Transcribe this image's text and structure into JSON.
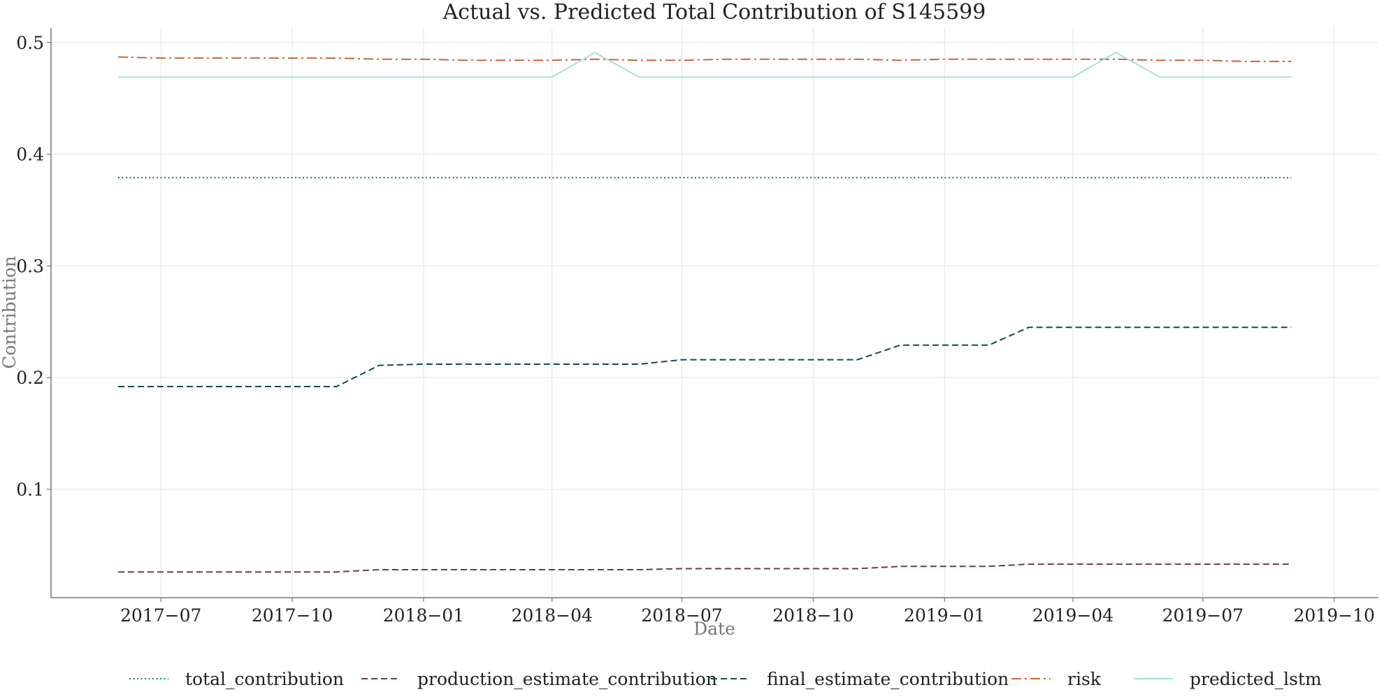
{
  "chart_data": {
    "type": "line",
    "title": "Actual vs. Predicted Total Contribution of S145599",
    "xlabel": "Date",
    "ylabel": "Contribution",
    "x_ticks": [
      "2017-07-01",
      "2017-10-01",
      "2018-01-01",
      "2018-04-01",
      "2018-07-01",
      "2018-10-01",
      "2019-01-01",
      "2019-04-01",
      "2019-07-01",
      "2019-10-01"
    ],
    "x_tick_labels": [
      "2017−07",
      "2017−10",
      "2018−01",
      "2018−04",
      "2018−07",
      "2018−10",
      "2019−01",
      "2019−04",
      "2019−07",
      "2019−10"
    ],
    "y_ticks": [
      0.1,
      0.2,
      0.3,
      0.4,
      0.5
    ],
    "y_tick_labels": [
      "0.1",
      "0.2",
      "0.3",
      "0.4",
      "0.5"
    ],
    "xlim": [
      "2017-04-15",
      "2019-11-01"
    ],
    "ylim": [
      0.003,
      0.513
    ],
    "grid": true,
    "legend_position": "bottom",
    "x": [
      "2017-06-01",
      "2017-07-01",
      "2017-08-01",
      "2017-09-01",
      "2017-10-01",
      "2017-11-01",
      "2017-12-01",
      "2018-01-01",
      "2018-02-01",
      "2018-03-01",
      "2018-04-01",
      "2018-05-01",
      "2018-06-01",
      "2018-07-01",
      "2018-08-01",
      "2018-09-01",
      "2018-10-01",
      "2018-11-01",
      "2018-12-01",
      "2019-01-01",
      "2019-02-01",
      "2019-03-01",
      "2019-04-01",
      "2019-05-01",
      "2019-06-01",
      "2019-07-01",
      "2019-08-01",
      "2019-09-01"
    ],
    "series": [
      {
        "name": "total_contribution",
        "color": "#1a7a6a",
        "dash": "2 3.5",
        "values": [
          0.379,
          0.379,
          0.379,
          0.379,
          0.379,
          0.379,
          0.379,
          0.379,
          0.379,
          0.379,
          0.379,
          0.379,
          0.379,
          0.379,
          0.379,
          0.379,
          0.379,
          0.379,
          0.379,
          0.379,
          0.379,
          0.379,
          0.379,
          0.379,
          0.379,
          0.379,
          0.379,
          0.379
        ]
      },
      {
        "name": "production_estimate_contribution",
        "color": "#6e3b3b",
        "dash": "9 5",
        "values": [
          0.026,
          0.026,
          0.026,
          0.026,
          0.026,
          0.026,
          0.028,
          0.028,
          0.028,
          0.028,
          0.028,
          0.028,
          0.028,
          0.029,
          0.029,
          0.029,
          0.029,
          0.029,
          0.031,
          0.031,
          0.031,
          0.033,
          0.033,
          0.033,
          0.033,
          0.033,
          0.033,
          0.033
        ]
      },
      {
        "name": "final_estimate_contribution",
        "color": "#0e4a50",
        "dash": "9 5",
        "values": [
          0.192,
          0.192,
          0.192,
          0.192,
          0.192,
          0.192,
          0.211,
          0.212,
          0.212,
          0.212,
          0.212,
          0.212,
          0.212,
          0.216,
          0.216,
          0.216,
          0.216,
          0.216,
          0.229,
          0.229,
          0.229,
          0.245,
          0.245,
          0.245,
          0.245,
          0.245,
          0.245,
          0.245
        ]
      },
      {
        "name": "risk",
        "color": "#c9653b",
        "dash": "14 5 3 5",
        "values": [
          0.487,
          0.486,
          0.486,
          0.486,
          0.486,
          0.486,
          0.485,
          0.485,
          0.484,
          0.484,
          0.484,
          0.485,
          0.484,
          0.484,
          0.485,
          0.485,
          0.485,
          0.485,
          0.484,
          0.485,
          0.485,
          0.485,
          0.485,
          0.485,
          0.484,
          0.484,
          0.483,
          0.483
        ]
      },
      {
        "name": "predicted_lstm",
        "color": "#a8e0d8",
        "dash": "",
        "values": [
          0.469,
          0.469,
          0.469,
          0.469,
          0.469,
          0.469,
          0.469,
          0.469,
          0.469,
          0.469,
          0.469,
          0.491,
          0.469,
          0.469,
          0.469,
          0.469,
          0.469,
          0.469,
          0.469,
          0.469,
          0.469,
          0.469,
          0.469,
          0.491,
          0.469,
          0.469,
          0.469,
          0.469
        ]
      }
    ]
  }
}
